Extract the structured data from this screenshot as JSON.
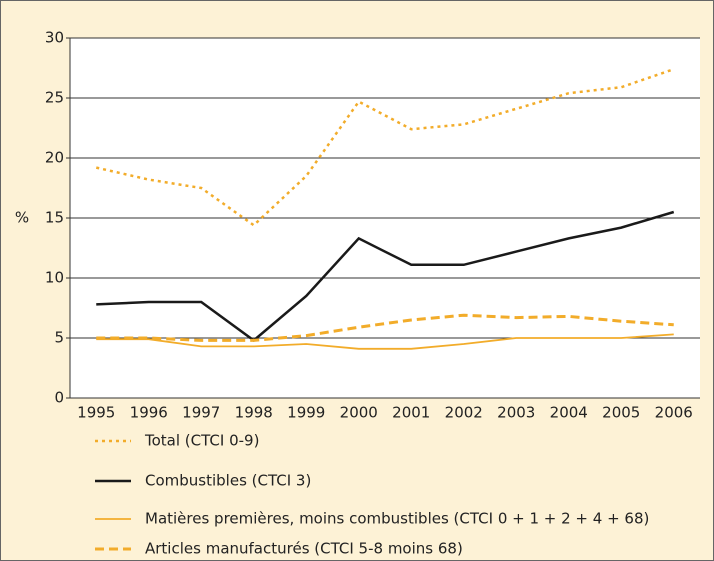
{
  "chart_data": {
    "type": "line",
    "y_label": "%",
    "categories": [
      "1995",
      "1996",
      "1997",
      "1998",
      "1999",
      "2000",
      "2001",
      "2002",
      "2003",
      "2004",
      "2005",
      "2006"
    ],
    "ylim": [
      0,
      30
    ],
    "yticks": [
      0,
      5,
      10,
      15,
      20,
      25,
      30
    ],
    "grid": true,
    "series": [
      {
        "name": "Total (CTCI 0-9)",
        "color": "#f2ac2a",
        "style": "dotted",
        "line_width": 2.5,
        "values": [
          19.2,
          18.2,
          17.5,
          14.4,
          18.5,
          24.7,
          22.4,
          22.8,
          24.1,
          25.4,
          25.9,
          27.4
        ]
      },
      {
        "name": "Combustibles (CTCI 3)",
        "color": "#1a1a1a",
        "style": "solid",
        "line_width": 2.5,
        "values": [
          7.8,
          8.0,
          8.0,
          4.8,
          8.5,
          13.3,
          11.1,
          11.1,
          12.2,
          13.3,
          14.2,
          15.5
        ]
      },
      {
        "name": "Matières premières, moins combustibles (CTCI 0 + 1 + 2 + 4 + 68)",
        "color": "#f2ac2a",
        "style": "solid",
        "line_width": 1.8,
        "values": [
          4.9,
          4.9,
          4.3,
          4.3,
          4.5,
          4.1,
          4.1,
          4.5,
          5.0,
          5.0,
          5.0,
          5.3
        ]
      },
      {
        "name": "Articles manufacturés (CTCI 5-8 moins 68)",
        "color": "#f2ac2a",
        "style": "dashed",
        "line_width": 3,
        "values": [
          5.0,
          5.0,
          4.8,
          4.8,
          5.2,
          5.9,
          6.5,
          6.9,
          6.7,
          6.8,
          6.4,
          6.1
        ]
      }
    ]
  }
}
